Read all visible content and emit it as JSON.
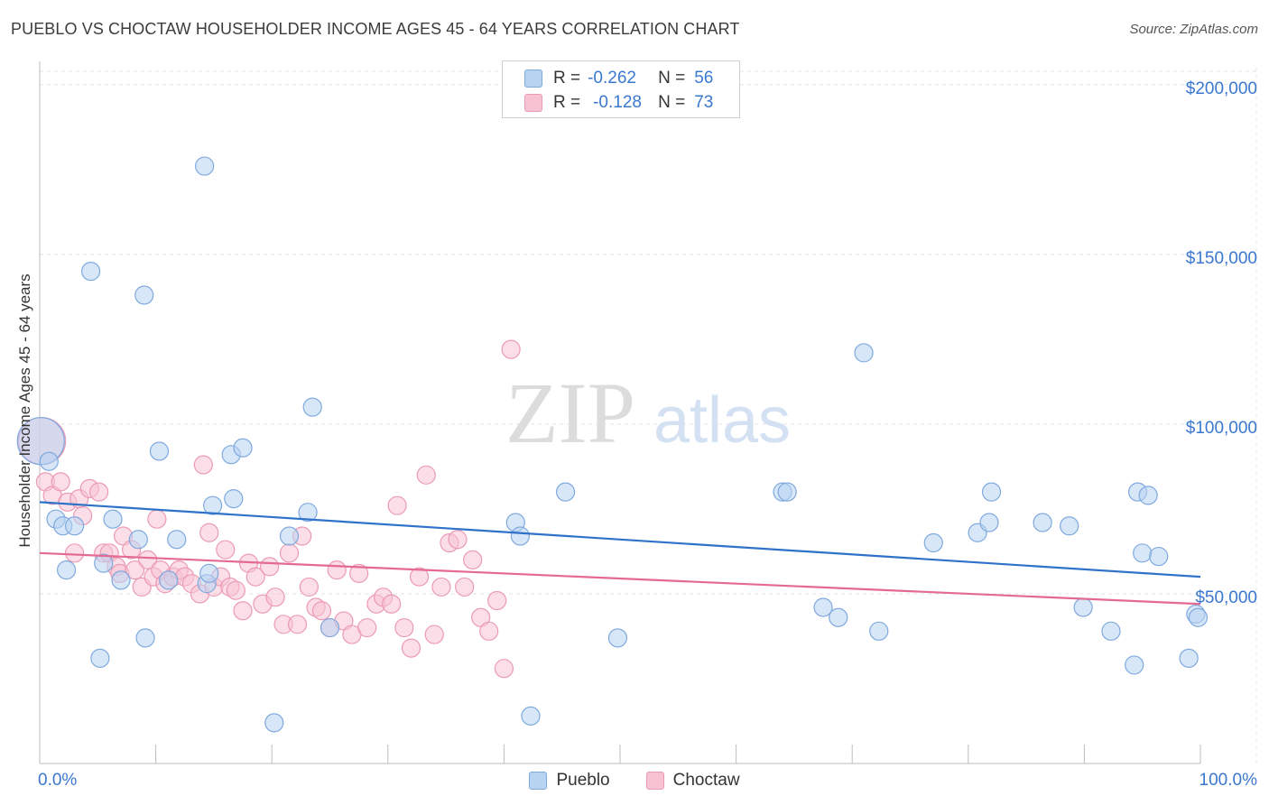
{
  "header": {
    "title": "PUEBLO VS CHOCTAW HOUSEHOLDER INCOME AGES 45 - 64 YEARS CORRELATION CHART",
    "source": "Source: ZipAtlas.com"
  },
  "watermark": {
    "zip": "ZIP",
    "atlas": "atlas"
  },
  "stats_legend": {
    "rows": [
      {
        "r_label": "R =",
        "r_value": "-0.262",
        "n_label": "N =",
        "n_value": "56"
      },
      {
        "r_label": "R =",
        "r_value": "-0.128",
        "n_label": "N =",
        "n_value": "73"
      }
    ]
  },
  "colors": {
    "pueblo_fill": "#b8d3f2",
    "pueblo_stroke": "#7ea9de",
    "pueblo_line": "#2e73c9",
    "choctaw_fill": "#f7c3d3",
    "choctaw_stroke": "#eb9ab5",
    "choctaw_line": "#e46a93",
    "axis_label": "#3a78d0",
    "grid": "#e3e3e3"
  },
  "chart_data": {
    "type": "scatter",
    "title": "PUEBLO VS CHOCTAW HOUSEHOLDER INCOME AGES 45 - 64 YEARS CORRELATION CHART",
    "xlabel": "",
    "ylabel": "Householder Income Ages 45 - 64 years",
    "xlim": [
      0,
      100
    ],
    "ylim": [
      0,
      205000
    ],
    "x_tick_labels": [
      "0.0%",
      "100.0%"
    ],
    "y_ticks": [
      50000,
      100000,
      150000,
      200000
    ],
    "y_tick_labels": [
      "$50,000",
      "$100,000",
      "$150,000",
      "$200,000"
    ],
    "grid": true,
    "legend": "bottom-center",
    "series": [
      {
        "name": "Pueblo",
        "x": [
          0.1,
          0.8,
          1.4,
          2.0,
          2.3,
          3.0,
          4.4,
          5.2,
          5.5,
          6.3,
          7.0,
          8.5,
          9.0,
          9.1,
          10.3,
          11.1,
          11.8,
          14.2,
          14.4,
          14.6,
          14.9,
          16.5,
          16.7,
          17.5,
          20.2,
          21.5,
          23.1,
          23.5,
          25.0,
          41.0,
          41.4,
          42.3,
          45.3,
          49.8,
          64.0,
          64.4,
          67.5,
          68.8,
          71.0,
          72.3,
          77.0,
          80.8,
          81.8,
          82.0,
          86.4,
          88.7,
          89.9,
          92.3,
          94.3,
          94.6,
          95.0,
          95.5,
          96.4,
          99.0,
          99.6,
          99.8
        ],
        "y": [
          95000,
          89000,
          72000,
          70000,
          57000,
          70000,
          145000,
          31000,
          59000,
          72000,
          54000,
          66000,
          138000,
          37000,
          92000,
          54000,
          66000,
          176000,
          53000,
          56000,
          76000,
          91000,
          78000,
          93000,
          12000,
          67000,
          74000,
          105000,
          40000,
          71000,
          67000,
          14000,
          80000,
          37000,
          80000,
          80000,
          46000,
          43000,
          121000,
          39000,
          65000,
          68000,
          71000,
          80000,
          71000,
          70000,
          46000,
          39000,
          29000,
          80000,
          62000,
          79000,
          61000,
          31000,
          44000,
          43000
        ],
        "sizes": [
          26,
          10,
          10,
          10,
          10,
          10,
          10,
          10,
          10,
          10,
          10,
          10,
          10,
          10,
          10,
          10,
          10,
          10,
          10,
          10,
          10,
          10,
          10,
          10,
          10,
          10,
          10,
          10,
          10,
          10,
          10,
          10,
          10,
          10,
          10,
          10,
          10,
          10,
          10,
          10,
          10,
          10,
          10,
          10,
          10,
          10,
          10,
          10,
          10,
          10,
          10,
          10,
          10,
          10,
          10,
          10
        ],
        "trend": {
          "y_at_x0": 77000,
          "y_at_x100": 55000
        }
      },
      {
        "name": "Choctaw",
        "x": [
          0.2,
          0.5,
          1.1,
          1.8,
          2.4,
          3.0,
          3.4,
          3.7,
          4.3,
          5.1,
          5.5,
          6.0,
          6.6,
          6.9,
          7.2,
          7.9,
          8.2,
          8.8,
          9.3,
          9.8,
          10.1,
          10.4,
          10.8,
          11.5,
          12.0,
          12.5,
          13.1,
          13.8,
          14.1,
          14.6,
          15.0,
          15.6,
          16.0,
          16.4,
          16.9,
          17.5,
          18.0,
          18.6,
          19.2,
          19.8,
          20.3,
          21.0,
          21.5,
          22.2,
          22.6,
          23.2,
          23.8,
          24.3,
          25.0,
          25.6,
          26.2,
          26.9,
          27.5,
          28.2,
          29.0,
          29.6,
          30.3,
          30.8,
          31.4,
          32.0,
          32.7,
          33.3,
          34.0,
          34.6,
          35.3,
          36.0,
          36.6,
          37.3,
          38.0,
          38.7,
          39.4,
          40.0,
          40.6
        ],
        "y": [
          95000,
          83000,
          79000,
          83000,
          77000,
          62000,
          78000,
          73000,
          81000,
          80000,
          62000,
          62000,
          58000,
          56000,
          67000,
          63000,
          57000,
          52000,
          60000,
          55000,
          72000,
          57000,
          53000,
          55000,
          57000,
          55000,
          53000,
          50000,
          88000,
          68000,
          52000,
          55000,
          63000,
          52000,
          51000,
          45000,
          59000,
          55000,
          47000,
          58000,
          49000,
          41000,
          62000,
          41000,
          67000,
          52000,
          46000,
          45000,
          40000,
          57000,
          42000,
          38000,
          56000,
          40000,
          47000,
          49000,
          47000,
          76000,
          40000,
          34000,
          55000,
          85000,
          38000,
          52000,
          65000,
          66000,
          52000,
          60000,
          43000,
          39000,
          48000,
          28000,
          122000
        ],
        "sizes": [
          26,
          10,
          10,
          10,
          10,
          10,
          10,
          10,
          10,
          10,
          10,
          10,
          10,
          10,
          10,
          10,
          10,
          10,
          10,
          10,
          10,
          10,
          10,
          10,
          10,
          10,
          10,
          10,
          10,
          10,
          10,
          10,
          10,
          10,
          10,
          10,
          10,
          10,
          10,
          10,
          10,
          10,
          10,
          10,
          10,
          10,
          10,
          10,
          10,
          10,
          10,
          10,
          10,
          10,
          10,
          10,
          10,
          10,
          10,
          10,
          10,
          10,
          10,
          10,
          10,
          10,
          10,
          10,
          10,
          10,
          10,
          10,
          10
        ],
        "trend": {
          "y_at_x0": 62000,
          "y_at_x100": 47000
        }
      }
    ]
  }
}
